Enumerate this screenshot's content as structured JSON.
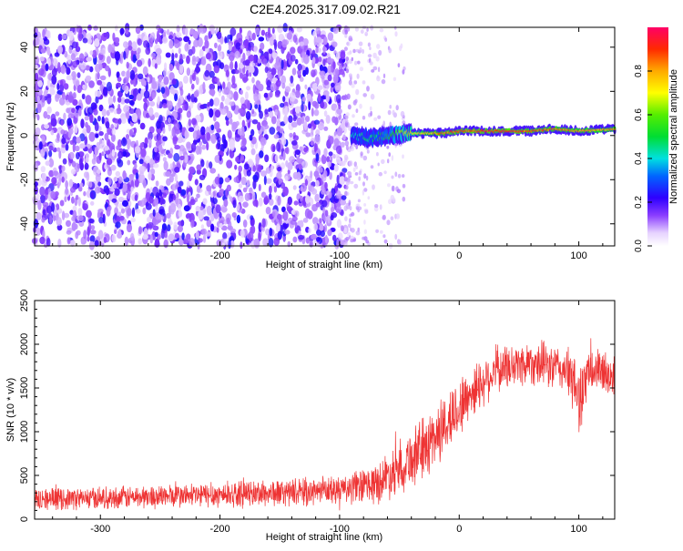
{
  "title": "C2E4.2025.317.09.02.R21",
  "chart_data": [
    {
      "type": "heatmap",
      "xlabel": "Height of straight line (km)",
      "ylabel": "Frequency (Hz)",
      "xlim": [
        -355,
        130
      ],
      "ylim": [
        -50,
        49
      ],
      "x_ticks": [
        -300,
        -200,
        -100,
        0,
        100
      ],
      "y_ticks": [
        -40,
        -20,
        0,
        20,
        40
      ],
      "colorbar": {
        "label": "Normalized spectral amplitude",
        "range": [
          0,
          1
        ],
        "ticks": [
          "0.0",
          "0.2",
          "0.4",
          "0.6",
          "0.8"
        ],
        "tick_values": [
          0.0,
          0.2,
          0.4,
          0.6,
          0.8
        ]
      },
      "noise_region": {
        "x_range": [
          -355,
          -95
        ],
        "frequency_range": [
          -50,
          49
        ],
        "amplitude_range": [
          0.05,
          0.25
        ]
      },
      "sparse_region": {
        "x_range": [
          -95,
          -45
        ],
        "amplitude_range": [
          0.05,
          0.12
        ]
      },
      "signal_ridge": [
        {
          "x": -90,
          "freq": 0,
          "amp": 0.45
        },
        {
          "x": -75,
          "freq": -1,
          "amp": 0.5
        },
        {
          "x": -60,
          "freq": 0,
          "amp": 0.55
        },
        {
          "x": -45,
          "freq": 1,
          "amp": 0.7
        },
        {
          "x": -30,
          "freq": 1,
          "amp": 0.8
        },
        {
          "x": -15,
          "freq": 1,
          "amp": 0.9
        },
        {
          "x": 0,
          "freq": 2,
          "amp": 0.95
        },
        {
          "x": 20,
          "freq": 2,
          "amp": 0.98
        },
        {
          "x": 40,
          "freq": 2,
          "amp": 0.98
        },
        {
          "x": 60,
          "freq": 2,
          "amp": 0.95
        },
        {
          "x": 80,
          "freq": 3,
          "amp": 0.9
        },
        {
          "x": 100,
          "freq": 2,
          "amp": 0.9
        },
        {
          "x": 130,
          "freq": 3,
          "amp": 0.85
        }
      ]
    },
    {
      "type": "line",
      "xlabel": "Height of straight line (km)",
      "ylabel": "SNR (10 * v/v)",
      "xlim": [
        -355,
        130
      ],
      "ylim": [
        0,
        2500
      ],
      "x_ticks": [
        -300,
        -200,
        -100,
        0,
        100
      ],
      "y_ticks": [
        0,
        500,
        1000,
        1500,
        2000,
        2500
      ],
      "color": "#ee3333",
      "envelope": [
        {
          "x": -355,
          "mean": 230,
          "spread": 120
        },
        {
          "x": -300,
          "mean": 240,
          "spread": 120
        },
        {
          "x": -250,
          "mean": 260,
          "spread": 130
        },
        {
          "x": -200,
          "mean": 280,
          "spread": 140
        },
        {
          "x": -150,
          "mean": 300,
          "spread": 150
        },
        {
          "x": -100,
          "mean": 330,
          "spread": 160
        },
        {
          "x": -70,
          "mean": 400,
          "spread": 220
        },
        {
          "x": -50,
          "mean": 600,
          "spread": 300
        },
        {
          "x": -30,
          "mean": 800,
          "spread": 350
        },
        {
          "x": -10,
          "mean": 1100,
          "spread": 350
        },
        {
          "x": 10,
          "mean": 1450,
          "spread": 300
        },
        {
          "x": 30,
          "mean": 1700,
          "spread": 250
        },
        {
          "x": 60,
          "mean": 1800,
          "spread": 250
        },
        {
          "x": 90,
          "mean": 1700,
          "spread": 250
        },
        {
          "x": 100,
          "mean": 1400,
          "spread": 400
        },
        {
          "x": 110,
          "mean": 1700,
          "spread": 250
        },
        {
          "x": 130,
          "mean": 1650,
          "spread": 250
        }
      ]
    }
  ]
}
